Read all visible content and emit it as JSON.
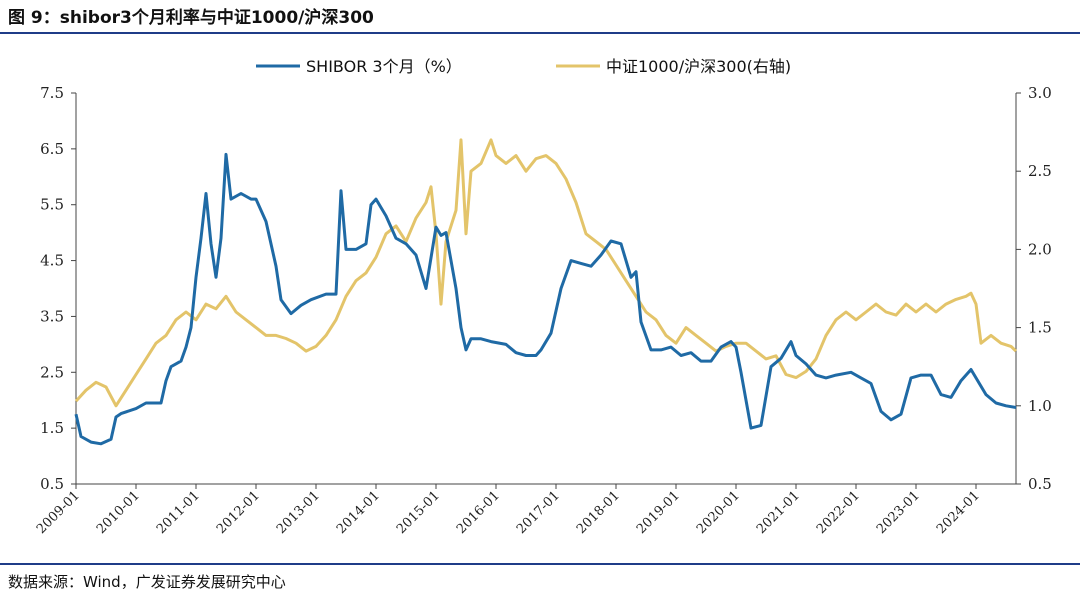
{
  "figure": {
    "title": "图 9：shibor3个月利率与中证1000/沪深300",
    "source": "数据来源：Wind，广发证券发展研究中心"
  },
  "colors": {
    "shibor": "#1f6aa5",
    "ratio": "#e3c46a",
    "rule": "#1f3c88",
    "axis": "#444444"
  },
  "chart_data": {
    "type": "line",
    "x_tick_labels": [
      "2009-01",
      "2010-01",
      "2011-01",
      "2012-01",
      "2013-01",
      "2014-01",
      "2015-01",
      "2016-01",
      "2017-01",
      "2018-01",
      "2019-01",
      "2020-01",
      "2021-01",
      "2022-01",
      "2023-01",
      "2024-01"
    ],
    "xlim": [
      "2009-01",
      "2024-09"
    ],
    "left_axis": {
      "ylim": [
        0.5,
        7.5
      ],
      "ticks": [
        "0.5",
        "1.5",
        "2.5",
        "3.5",
        "4.5",
        "5.5",
        "6.5",
        "7.5"
      ]
    },
    "right_axis": {
      "ylim": [
        0.5,
        3.0
      ],
      "ticks": [
        "0.5",
        "1.0",
        "1.5",
        "2.0",
        "2.5",
        "3.0"
      ]
    },
    "grid": false,
    "legend_position": "top-center",
    "series": [
      {
        "name": "SHIBOR 3个月（%）",
        "axis": "left",
        "points": [
          [
            "2009-01",
            1.75
          ],
          [
            "2009-02",
            1.35
          ],
          [
            "2009-04",
            1.25
          ],
          [
            "2009-06",
            1.22
          ],
          [
            "2009-08",
            1.3
          ],
          [
            "2009-09",
            1.7
          ],
          [
            "2009-10",
            1.76
          ],
          [
            "2010-01",
            1.85
          ],
          [
            "2010-03",
            1.95
          ],
          [
            "2010-06",
            1.95
          ],
          [
            "2010-07",
            2.35
          ],
          [
            "2010-08",
            2.6
          ],
          [
            "2010-10",
            2.7
          ],
          [
            "2010-11",
            2.95
          ],
          [
            "2010-12",
            3.3
          ],
          [
            "2011-01",
            4.2
          ],
          [
            "2011-02",
            4.9
          ],
          [
            "2011-03",
            5.7
          ],
          [
            "2011-04",
            4.8
          ],
          [
            "2011-05",
            4.2
          ],
          [
            "2011-06",
            4.9
          ],
          [
            "2011-07",
            6.4
          ],
          [
            "2011-08",
            5.6
          ],
          [
            "2011-10",
            5.7
          ],
          [
            "2011-12",
            5.6
          ],
          [
            "2012-01",
            5.6
          ],
          [
            "2012-03",
            5.2
          ],
          [
            "2012-05",
            4.4
          ],
          [
            "2012-06",
            3.8
          ],
          [
            "2012-08",
            3.55
          ],
          [
            "2012-10",
            3.7
          ],
          [
            "2012-12",
            3.8
          ],
          [
            "2013-03",
            3.9
          ],
          [
            "2013-05",
            3.9
          ],
          [
            "2013-06",
            5.75
          ],
          [
            "2013-07",
            4.7
          ],
          [
            "2013-09",
            4.7
          ],
          [
            "2013-11",
            4.8
          ],
          [
            "2013-12",
            5.5
          ],
          [
            "2014-01",
            5.6
          ],
          [
            "2014-03",
            5.3
          ],
          [
            "2014-05",
            4.9
          ],
          [
            "2014-07",
            4.8
          ],
          [
            "2014-09",
            4.6
          ],
          [
            "2014-11",
            4.0
          ],
          [
            "2015-01",
            5.1
          ],
          [
            "2015-02",
            4.95
          ],
          [
            "2015-03",
            5.0
          ],
          [
            "2015-05",
            4.0
          ],
          [
            "2015-06",
            3.3
          ],
          [
            "2015-07",
            2.9
          ],
          [
            "2015-08",
            3.1
          ],
          [
            "2015-10",
            3.1
          ],
          [
            "2015-12",
            3.05
          ],
          [
            "2016-03",
            3.0
          ],
          [
            "2016-05",
            2.85
          ],
          [
            "2016-07",
            2.8
          ],
          [
            "2016-09",
            2.8
          ],
          [
            "2016-10",
            2.9
          ],
          [
            "2016-12",
            3.2
          ],
          [
            "2017-02",
            4.0
          ],
          [
            "2017-04",
            4.5
          ],
          [
            "2017-06",
            4.45
          ],
          [
            "2017-08",
            4.4
          ],
          [
            "2017-10",
            4.6
          ],
          [
            "2017-12",
            4.85
          ],
          [
            "2018-02",
            4.8
          ],
          [
            "2018-04",
            4.2
          ],
          [
            "2018-05",
            4.3
          ],
          [
            "2018-06",
            3.4
          ],
          [
            "2018-08",
            2.9
          ],
          [
            "2018-10",
            2.9
          ],
          [
            "2018-12",
            2.95
          ],
          [
            "2019-02",
            2.8
          ],
          [
            "2019-04",
            2.85
          ],
          [
            "2019-06",
            2.7
          ],
          [
            "2019-08",
            2.7
          ],
          [
            "2019-10",
            2.95
          ],
          [
            "2019-12",
            3.05
          ],
          [
            "2020-01",
            2.95
          ],
          [
            "2020-02",
            2.5
          ],
          [
            "2020-03",
            2.0
          ],
          [
            "2020-04",
            1.5
          ],
          [
            "2020-06",
            1.55
          ],
          [
            "2020-08",
            2.6
          ],
          [
            "2020-10",
            2.75
          ],
          [
            "2020-12",
            3.05
          ],
          [
            "2021-01",
            2.8
          ],
          [
            "2021-03",
            2.65
          ],
          [
            "2021-05",
            2.45
          ],
          [
            "2021-07",
            2.4
          ],
          [
            "2021-09",
            2.45
          ],
          [
            "2021-12",
            2.5
          ],
          [
            "2022-02",
            2.4
          ],
          [
            "2022-04",
            2.3
          ],
          [
            "2022-06",
            1.8
          ],
          [
            "2022-08",
            1.65
          ],
          [
            "2022-10",
            1.75
          ],
          [
            "2022-12",
            2.4
          ],
          [
            "2023-02",
            2.45
          ],
          [
            "2023-04",
            2.45
          ],
          [
            "2023-06",
            2.1
          ],
          [
            "2023-08",
            2.05
          ],
          [
            "2023-10",
            2.35
          ],
          [
            "2023-12",
            2.55
          ],
          [
            "2024-01",
            2.4
          ],
          [
            "2024-03",
            2.1
          ],
          [
            "2024-05",
            1.95
          ],
          [
            "2024-07",
            1.9
          ],
          [
            "2024-09",
            1.87
          ]
        ]
      },
      {
        "name": "中证1000/沪深300(右轴)",
        "axis": "right",
        "points": [
          [
            "2009-01",
            1.03
          ],
          [
            "2009-03",
            1.1
          ],
          [
            "2009-05",
            1.15
          ],
          [
            "2009-07",
            1.12
          ],
          [
            "2009-09",
            1.0
          ],
          [
            "2009-11",
            1.1
          ],
          [
            "2010-01",
            1.2
          ],
          [
            "2010-03",
            1.3
          ],
          [
            "2010-05",
            1.4
          ],
          [
            "2010-07",
            1.45
          ],
          [
            "2010-09",
            1.55
          ],
          [
            "2010-11",
            1.6
          ],
          [
            "2011-01",
            1.55
          ],
          [
            "2011-03",
            1.65
          ],
          [
            "2011-05",
            1.62
          ],
          [
            "2011-07",
            1.7
          ],
          [
            "2011-09",
            1.6
          ],
          [
            "2011-11",
            1.55
          ],
          [
            "2012-01",
            1.5
          ],
          [
            "2012-03",
            1.45
          ],
          [
            "2012-05",
            1.45
          ],
          [
            "2012-07",
            1.43
          ],
          [
            "2012-09",
            1.4
          ],
          [
            "2012-11",
            1.35
          ],
          [
            "2013-01",
            1.38
          ],
          [
            "2013-03",
            1.45
          ],
          [
            "2013-05",
            1.55
          ],
          [
            "2013-07",
            1.7
          ],
          [
            "2013-09",
            1.8
          ],
          [
            "2013-11",
            1.85
          ],
          [
            "2014-01",
            1.95
          ],
          [
            "2014-03",
            2.1
          ],
          [
            "2014-05",
            2.15
          ],
          [
            "2014-07",
            2.05
          ],
          [
            "2014-09",
            2.2
          ],
          [
            "2014-11",
            2.3
          ],
          [
            "2014-12",
            2.4
          ],
          [
            "2015-01",
            2.1
          ],
          [
            "2015-02",
            1.65
          ],
          [
            "2015-03",
            2.05
          ],
          [
            "2015-05",
            2.25
          ],
          [
            "2015-06",
            2.7
          ],
          [
            "2015-07",
            2.1
          ],
          [
            "2015-08",
            2.5
          ],
          [
            "2015-10",
            2.55
          ],
          [
            "2015-12",
            2.7
          ],
          [
            "2016-01",
            2.6
          ],
          [
            "2016-03",
            2.55
          ],
          [
            "2016-05",
            2.6
          ],
          [
            "2016-07",
            2.5
          ],
          [
            "2016-09",
            2.58
          ],
          [
            "2016-11",
            2.6
          ],
          [
            "2017-01",
            2.55
          ],
          [
            "2017-03",
            2.45
          ],
          [
            "2017-05",
            2.3
          ],
          [
            "2017-07",
            2.1
          ],
          [
            "2017-09",
            2.05
          ],
          [
            "2017-11",
            2.0
          ],
          [
            "2018-01",
            1.9
          ],
          [
            "2018-03",
            1.8
          ],
          [
            "2018-05",
            1.7
          ],
          [
            "2018-07",
            1.6
          ],
          [
            "2018-09",
            1.55
          ],
          [
            "2018-11",
            1.45
          ],
          [
            "2019-01",
            1.4
          ],
          [
            "2019-03",
            1.5
          ],
          [
            "2019-05",
            1.45
          ],
          [
            "2019-07",
            1.4
          ],
          [
            "2019-09",
            1.35
          ],
          [
            "2019-11",
            1.38
          ],
          [
            "2020-01",
            1.4
          ],
          [
            "2020-03",
            1.4
          ],
          [
            "2020-05",
            1.35
          ],
          [
            "2020-07",
            1.3
          ],
          [
            "2020-09",
            1.32
          ],
          [
            "2020-11",
            1.2
          ],
          [
            "2021-01",
            1.18
          ],
          [
            "2021-03",
            1.22
          ],
          [
            "2021-05",
            1.3
          ],
          [
            "2021-07",
            1.45
          ],
          [
            "2021-09",
            1.55
          ],
          [
            "2021-11",
            1.6
          ],
          [
            "2022-01",
            1.55
          ],
          [
            "2022-03",
            1.6
          ],
          [
            "2022-05",
            1.65
          ],
          [
            "2022-07",
            1.6
          ],
          [
            "2022-09",
            1.58
          ],
          [
            "2022-11",
            1.65
          ],
          [
            "2023-01",
            1.6
          ],
          [
            "2023-03",
            1.65
          ],
          [
            "2023-05",
            1.6
          ],
          [
            "2023-07",
            1.65
          ],
          [
            "2023-09",
            1.68
          ],
          [
            "2023-11",
            1.7
          ],
          [
            "2023-12",
            1.72
          ],
          [
            "2024-01",
            1.65
          ],
          [
            "2024-02",
            1.4
          ],
          [
            "2024-04",
            1.45
          ],
          [
            "2024-06",
            1.4
          ],
          [
            "2024-08",
            1.38
          ],
          [
            "2024-09",
            1.35
          ]
        ]
      }
    ]
  }
}
